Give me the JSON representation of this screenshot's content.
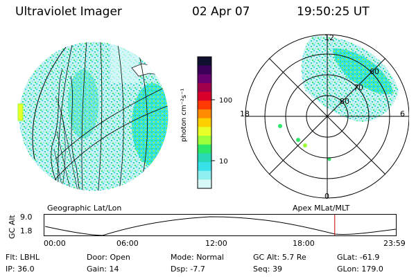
{
  "header": {
    "instrument": "Ultraviolet Imager",
    "date": "02 Apr 07",
    "time": "19:50:25 UT"
  },
  "panels": {
    "left_label": "Geographic Lat/Lon",
    "right_label": "Apex MLat/MLT"
  },
  "colorbar": {
    "unit_label": "photon cm⁻²s⁻¹",
    "ticks": [
      "100",
      "10"
    ],
    "colors": [
      "#101030",
      "#3a0058",
      "#6a0070",
      "#a0004a",
      "#d8002a",
      "#ff3a00",
      "#ff8c00",
      "#ffd000",
      "#e8ff28",
      "#9cff3a",
      "#2ee86a",
      "#28d8b4",
      "#38e0e8",
      "#90f0f0",
      "#d8f8f8"
    ]
  },
  "polar": {
    "mlt_labels": [
      "12",
      "18",
      "6",
      "0"
    ],
    "lat_labels": [
      "60",
      "70",
      "80"
    ]
  },
  "timeline": {
    "ylabel": "GC Alt",
    "y_ticks": [
      "9.0",
      "1.8"
    ],
    "x_ticks": [
      "00:00",
      "06:00",
      "12:00",
      "18:00",
      "23:59"
    ],
    "current_time_fraction": 0.826
  },
  "status": {
    "row1": [
      {
        "label": "Flt:",
        "value": "LBHL"
      },
      {
        "label": "Door:",
        "value": "Open"
      },
      {
        "label": "Mode:",
        "value": "Normal"
      },
      {
        "label": "GC Alt:",
        "value": "5.7 Re"
      },
      {
        "label": "GLat:",
        "value": "-61.9"
      }
    ],
    "row2": [
      {
        "label": "IP:",
        "value": "36.0"
      },
      {
        "label": "Gain:",
        "value": "14"
      },
      {
        "label": "Dsp:",
        "value": "-7.7"
      },
      {
        "label": "Seq:",
        "value": "39"
      },
      {
        "label": "GLon:",
        "value": "179.0"
      }
    ]
  }
}
